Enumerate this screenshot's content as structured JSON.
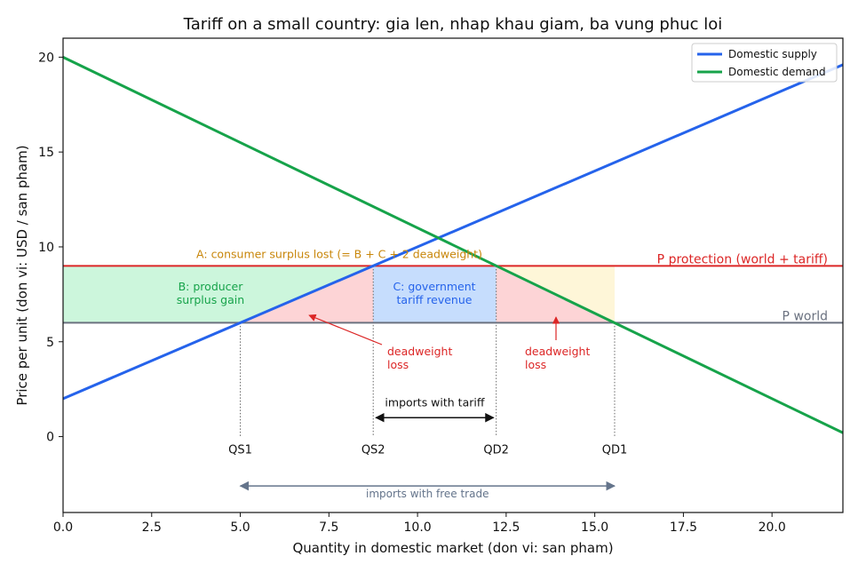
{
  "chart_data": {
    "type": "line",
    "title": "Tariff on a small country: gia len, nhap khau giam, ba vung phuc loi",
    "xlabel": "Quantity in domestic market (don vi: san pham)",
    "ylabel": "Price per unit (don vi: USD / san pham)",
    "xlim": [
      0,
      22
    ],
    "ylim": [
      -4,
      21
    ],
    "xticks": [
      0,
      2.5,
      5,
      7.5,
      10,
      12.5,
      15,
      17.5,
      20
    ],
    "xtick_labels": [
      "0.0",
      "2.5",
      "5.0",
      "7.5",
      "10.0",
      "12.5",
      "15.0",
      "17.5",
      "20.0"
    ],
    "yticks": [
      0,
      5,
      10,
      15,
      20
    ],
    "ytick_labels": [
      "0",
      "5",
      "10",
      "15",
      "20"
    ],
    "grid": false,
    "legend_position": "top-right",
    "series": [
      {
        "name": "Domestic supply",
        "color": "#2563eb",
        "x": [
          0,
          22
        ],
        "y": [
          2,
          19.6
        ]
      },
      {
        "name": "Domestic demand",
        "color": "#16a34a",
        "x": [
          0,
          22
        ],
        "y": [
          20,
          0.2
        ]
      }
    ],
    "hlines": [
      {
        "label": "P protection (world + tariff)",
        "y": 9,
        "color": "#dc2626"
      },
      {
        "label": "P world",
        "y": 6,
        "color": "#6b7280"
      }
    ],
    "quantities": [
      {
        "label": "QS1",
        "x": 5.0
      },
      {
        "label": "QS2",
        "x": 8.75
      },
      {
        "label": "QD2",
        "x": 12.22
      },
      {
        "label": "QD1",
        "x": 15.56
      }
    ],
    "regions": [
      {
        "key": "A",
        "label": "A: consumer surplus lost (= B + C + 2 deadweight)",
        "color": "#c8860a"
      },
      {
        "key": "B",
        "label_lines": [
          "B: producer",
          "surplus gain"
        ],
        "color": "#16a34a"
      },
      {
        "key": "C",
        "label_lines": [
          "C: government",
          "tariff revenue"
        ],
        "color": "#2563eb"
      }
    ],
    "annotations": {
      "deadweight_left": [
        "deadweight",
        "loss"
      ],
      "deadweight_right": [
        "deadweight",
        "loss"
      ],
      "imports_tariff": "imports with tariff",
      "imports_free": "imports with free trade"
    }
  }
}
